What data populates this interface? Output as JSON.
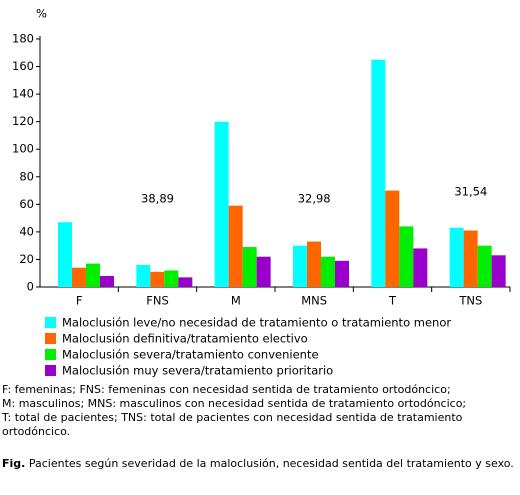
{
  "chart_data": {
    "type": "bar",
    "y_label": "%",
    "categories": [
      "F",
      "FNS",
      "M",
      "MNS",
      "T",
      "TNS"
    ],
    "series": [
      {
        "name": "Maloclusión leve/no necesidad de tratamiento o tratamiento menor",
        "color": "#00ffff",
        "values": [
          47,
          16,
          120,
          30,
          165,
          43
        ]
      },
      {
        "name": "Maloclusión definitiva/tratamiento electivo",
        "color": "#ff6600",
        "values": [
          14,
          11,
          59,
          33,
          70,
          41
        ]
      },
      {
        "name": "Maloclusión severa/tratamiento conveniente",
        "color": "#00ee00",
        "values": [
          17,
          12,
          29,
          22,
          44,
          30
        ]
      },
      {
        "name": "Maloclusión muy severa/tratamiento prioritario",
        "color": "#9900cc",
        "values": [
          8,
          7,
          22,
          19,
          28,
          23
        ]
      }
    ],
    "annotations": [
      "38,89",
      "32,98",
      "31,54"
    ],
    "ylim": [
      0,
      180
    ],
    "yticks": [
      0,
      20,
      40,
      60,
      80,
      100,
      120,
      140,
      160,
      180
    ],
    "grid": false
  },
  "notes": [
    "F: femeninas; FNS: femeninas con necesidad sentida de tratamiento ortodóncico;",
    "M: masculinos; MNS: masculinos con necesidad sentida de tratamiento ortodóncico;",
    "T: total de pacientes; TNS: total de pacientes con necesidad sentida de tratamiento ortodóncico."
  ],
  "caption_label": "Fig.",
  "caption": "Pacientes según severidad de la maloclusión, necesidad sentida del tratamiento y sexo."
}
